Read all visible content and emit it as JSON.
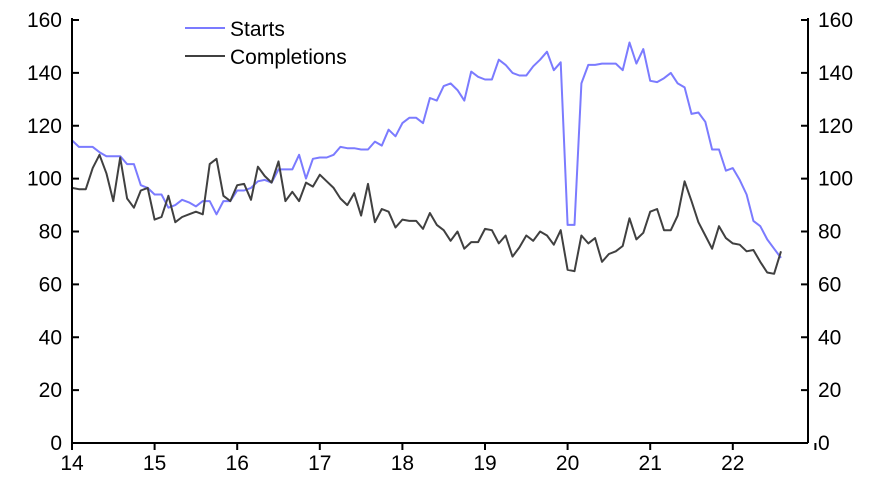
{
  "chart_data": {
    "type": "line",
    "title": "",
    "xlabel": "",
    "ylabel": "",
    "ylim": [
      0,
      160
    ],
    "y_ticks": [
      "0",
      "20",
      "40",
      "60",
      "80",
      "100",
      "120",
      "140",
      "160"
    ],
    "y2_ticks": [
      "0",
      "20",
      "40",
      "60",
      "80",
      "100",
      "120",
      "140",
      "160"
    ],
    "x_ticks": [
      "14",
      "15",
      "16",
      "17",
      "18",
      "19",
      "20",
      "21",
      "22"
    ],
    "x_start": "2014-01",
    "frequency": "monthly",
    "grid": false,
    "legend_position": "top-left",
    "series": [
      {
        "name": "Starts",
        "color": "#7b7bff",
        "values": [
          114.5,
          112,
          112,
          112,
          110,
          108.5,
          108.5,
          108.5,
          105.5,
          105.5,
          97.5,
          96.5,
          94,
          94,
          89,
          90,
          92,
          91,
          89.5,
          91.5,
          91.5,
          86.5,
          91.5,
          91.5,
          95.5,
          95.5,
          96.5,
          99,
          99.5,
          98.5,
          103.5,
          103.5,
          103.5,
          109,
          100,
          107.5,
          108,
          108,
          109,
          112,
          111.5,
          111.5,
          111,
          111,
          114,
          112.5,
          118.5,
          116,
          121,
          123,
          123,
          121,
          130.5,
          129.5,
          135,
          136,
          133.5,
          129.5,
          140.5,
          138.5,
          137.5,
          137.5,
          145,
          143,
          140,
          139,
          139,
          142.5,
          145,
          148,
          141,
          144,
          82.5,
          82.5,
          136,
          143,
          143,
          143.5,
          143.5,
          143.5,
          141,
          151.5,
          143.5,
          149,
          137,
          136.5,
          138,
          140,
          136,
          134.5,
          124.5,
          125,
          121.5,
          111,
          111,
          103,
          104,
          99.5,
          94,
          84,
          82,
          77,
          73.5,
          70
        ]
      },
      {
        "name": "Completions",
        "color": "#404040",
        "values": [
          96.5,
          96,
          96,
          104,
          109,
          102,
          91.5,
          108,
          92.5,
          89,
          95.5,
          96.5,
          84.5,
          85.5,
          93.5,
          83.5,
          85.5,
          86.5,
          87.5,
          86.5,
          105.5,
          107.5,
          93.5,
          91.5,
          97.5,
          98,
          92,
          104.5,
          101,
          98.5,
          106.5,
          91.5,
          95,
          91.5,
          98.5,
          97,
          101.5,
          99,
          96.5,
          92.5,
          90,
          94.5,
          86,
          98,
          83.5,
          88.5,
          87.5,
          81.5,
          84.5,
          84,
          84,
          81,
          87,
          82.5,
          80.5,
          76.5,
          80,
          73.5,
          76,
          76,
          81,
          80.5,
          75.5,
          78.5,
          70.5,
          74,
          78.5,
          76.5,
          80,
          78.5,
          75,
          80.5,
          65.5,
          65,
          78.5,
          75.5,
          77.5,
          68.5,
          71.5,
          72.5,
          74.5,
          85,
          77,
          79.5,
          87.5,
          88.5,
          80.5,
          80.5,
          86,
          99,
          91.5,
          83.5,
          78.5,
          73.5,
          82,
          77.5,
          75.5,
          75,
          72.5,
          73,
          68.5,
          64.5,
          64,
          72.5
        ]
      }
    ]
  }
}
